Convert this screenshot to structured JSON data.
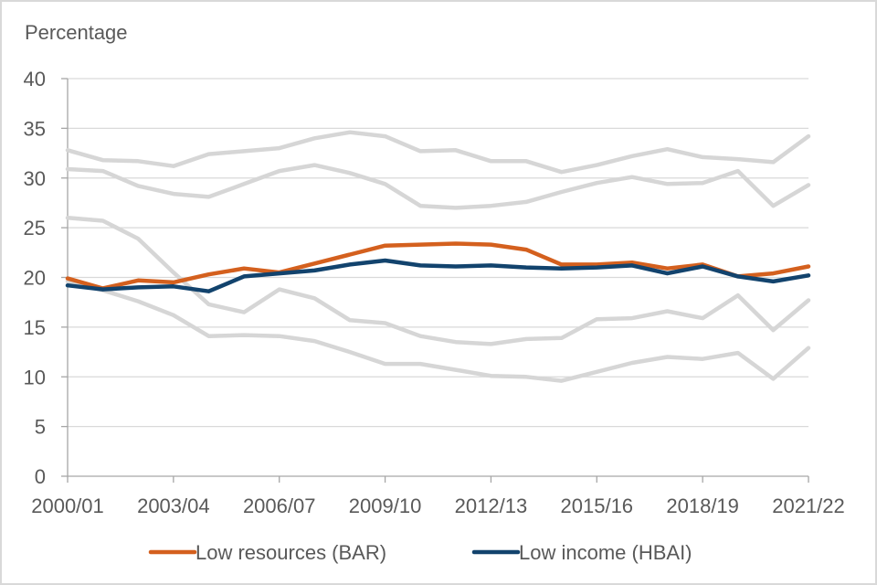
{
  "chart_data": {
    "type": "line",
    "title": "",
    "ylabel": "Percentage",
    "xlabel": "",
    "ylim": [
      0,
      40
    ],
    "yticks": [
      0,
      5,
      10,
      15,
      20,
      25,
      30,
      35,
      40
    ],
    "grid": true,
    "legend_position": "bottom",
    "x": [
      "2000/01",
      "2001/02",
      "2002/03",
      "2003/04",
      "2004/05",
      "2005/06",
      "2006/07",
      "2007/08",
      "2008/09",
      "2009/10",
      "2010/11",
      "2011/12",
      "2012/13",
      "2013/14",
      "2014/15",
      "2015/16",
      "2016/17",
      "2017/18",
      "2018/19",
      "2019/20",
      "2020/21",
      "2021/22"
    ],
    "xtick_labels": [
      "2000/01",
      "2003/04",
      "2006/07",
      "2009/10",
      "2012/13",
      "2015/16",
      "2018/19",
      "2021/22"
    ],
    "series": [
      {
        "name": "Low resources (BAR)",
        "color": "#d4601e",
        "in_legend": true,
        "values": [
          19.9,
          18.9,
          19.7,
          19.5,
          20.3,
          20.9,
          20.5,
          21.4,
          22.3,
          23.2,
          23.3,
          23.4,
          23.3,
          22.8,
          21.3,
          21.3,
          21.5,
          20.9,
          21.3,
          20.1,
          20.4,
          21.1
        ]
      },
      {
        "name": "Low income (HBAI)",
        "color": "#12436d",
        "in_legend": true,
        "values": [
          19.2,
          18.8,
          19.0,
          19.1,
          18.6,
          20.1,
          20.4,
          20.7,
          21.3,
          21.7,
          21.2,
          21.1,
          21.2,
          21.0,
          20.9,
          21.0,
          21.2,
          20.4,
          21.1,
          20.1,
          19.6,
          20.2
        ]
      },
      {
        "name": "",
        "color": "#d6d6d6",
        "in_legend": false,
        "values": [
          32.8,
          31.8,
          31.7,
          31.2,
          32.4,
          32.7,
          33.0,
          34.0,
          34.6,
          34.2,
          32.7,
          32.8,
          31.7,
          31.7,
          30.6,
          31.3,
          32.2,
          32.9,
          32.1,
          31.9,
          31.6,
          34.2
        ]
      },
      {
        "name": "",
        "color": "#d6d6d6",
        "in_legend": false,
        "values": [
          30.9,
          30.7,
          29.2,
          28.4,
          28.1,
          29.4,
          30.7,
          31.3,
          30.5,
          29.4,
          27.2,
          27.0,
          27.2,
          27.6,
          28.6,
          29.5,
          30.1,
          29.4,
          29.5,
          30.7,
          27.2,
          29.3
        ]
      },
      {
        "name": "",
        "color": "#d6d6d6",
        "in_legend": false,
        "values": [
          26.0,
          25.7,
          23.9,
          20.5,
          17.3,
          16.5,
          18.8,
          17.9,
          15.7,
          15.4,
          14.1,
          13.5,
          13.3,
          13.8,
          13.9,
          15.8,
          15.9,
          16.6,
          15.9,
          18.2,
          14.7,
          17.7
        ]
      },
      {
        "name": "",
        "color": "#d6d6d6",
        "in_legend": false,
        "values": [
          19.6,
          18.7,
          17.6,
          16.2,
          14.1,
          14.2,
          14.1,
          13.6,
          12.5,
          11.3,
          11.3,
          10.7,
          10.1,
          10.0,
          9.6,
          10.5,
          11.4,
          12.0,
          11.8,
          12.4,
          9.8,
          12.9
        ]
      }
    ]
  }
}
